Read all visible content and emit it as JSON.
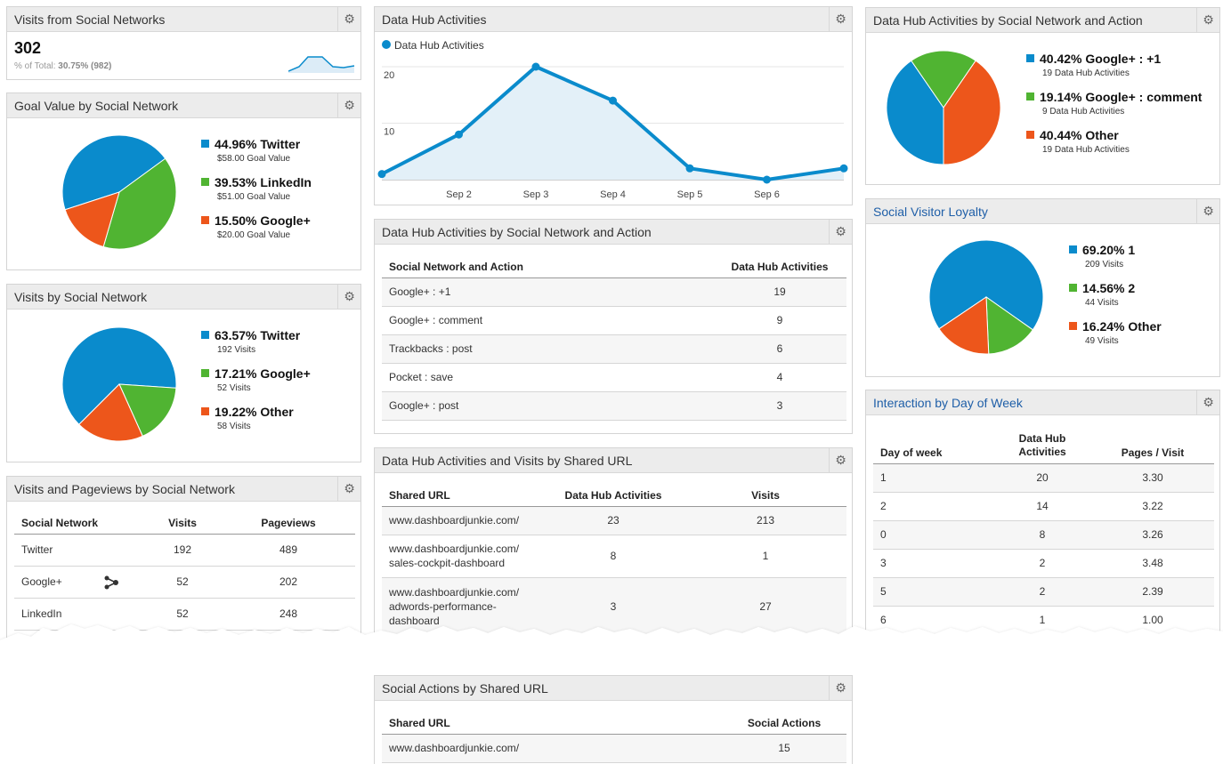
{
  "colors": {
    "blue": "#0a8bcc",
    "green": "#50b432",
    "orange": "#ed561b",
    "header_bg": "#ececec",
    "link": "#1f5fa8"
  },
  "icons": {
    "gear": "gear-icon",
    "share": "share-icon"
  },
  "visits_social": {
    "title": "Visits from Social Networks",
    "value": "302",
    "pct_label": "% of Total:",
    "pct_value": "30.75%",
    "total": "(982)"
  },
  "goal_value": {
    "title": "Goal Value by Social Network",
    "legend": [
      {
        "pct": "44.96%",
        "name": "Twitter",
        "sub": "$58.00 Goal Value",
        "color": "#0a8bcc",
        "value": 44.96
      },
      {
        "pct": "39.53%",
        "name": "LinkedIn",
        "sub": "$51.00 Goal Value",
        "color": "#50b432",
        "value": 39.53
      },
      {
        "pct": "15.50%",
        "name": "Google+",
        "sub": "$20.00 Goal Value",
        "color": "#ed561b",
        "value": 15.5
      }
    ]
  },
  "visits_by_network": {
    "title": "Visits by Social Network",
    "legend": [
      {
        "pct": "63.57%",
        "name": "Twitter",
        "sub": "192 Visits",
        "color": "#0a8bcc",
        "value": 63.57
      },
      {
        "pct": "17.21%",
        "name": "Google+",
        "sub": "52 Visits",
        "color": "#50b432",
        "value": 17.21
      },
      {
        "pct": "19.22%",
        "name": "Other",
        "sub": "58 Visits",
        "color": "#ed561b",
        "value": 19.22
      }
    ]
  },
  "visits_pageviews": {
    "title": "Visits and Pageviews by Social Network",
    "headers": [
      "Social Network",
      "Visits",
      "Pageviews"
    ],
    "rows": [
      [
        "Twitter",
        "192",
        "489"
      ],
      [
        "Google+",
        "52",
        "202"
      ],
      [
        "LinkedIn",
        "52",
        "248"
      ]
    ]
  },
  "hub_chart": {
    "title": "Data Hub Activities",
    "chart_data": {
      "type": "area",
      "series": [
        {
          "name": "Data Hub Activities",
          "values": [
            1,
            8,
            20,
            14,
            2,
            0,
            2
          ]
        }
      ],
      "x": [
        "",
        "Sep 2",
        "Sep 3",
        "Sep 4",
        "Sep 5",
        "Sep 6",
        ""
      ],
      "yticks": [
        "20",
        "10"
      ],
      "ylim": [
        0,
        20
      ],
      "grid": true,
      "legend": "top-left"
    }
  },
  "hub_table": {
    "title": "Data Hub Activities by Social Network and Action",
    "headers": [
      "Social Network and Action",
      "Data Hub Activities"
    ],
    "rows": [
      [
        "Google+ : +1",
        "19"
      ],
      [
        "Google+ : comment",
        "9"
      ],
      [
        "Trackbacks : post",
        "6"
      ],
      [
        "Pocket : save",
        "4"
      ],
      [
        "Google+ : post",
        "3"
      ]
    ]
  },
  "shared_url": {
    "title": "Data Hub Activities and Visits by Shared URL",
    "headers": [
      "Shared URL",
      "Data Hub Activities",
      "Visits"
    ],
    "rows": [
      {
        "url": [
          "www.dashboardjunkie.com/"
        ],
        "act": "23",
        "visits": "213"
      },
      {
        "url": [
          "www.dashboardjunkie.com/",
          "sales-cockpit-dashboard"
        ],
        "act": "8",
        "visits": "1"
      },
      {
        "url": [
          "www.dashboardjunkie.com/",
          "adwords-performance-",
          "dashboard"
        ],
        "act": "3",
        "visits": "27"
      }
    ]
  },
  "social_actions": {
    "title": "Social Actions by Shared URL",
    "headers": [
      "Shared URL",
      "Social Actions"
    ],
    "rows": [
      [
        "www.dashboardjunkie.com/",
        "15"
      ]
    ]
  },
  "hub_pie": {
    "title": "Data Hub Activities by Social Network and Action",
    "legend": [
      {
        "pct": "40.42%",
        "name": "Google+ : +1",
        "sub": "19 Data Hub Activities",
        "color": "#0a8bcc",
        "value": 40.42
      },
      {
        "pct": "19.14%",
        "name": "Google+ : comment",
        "sub": "9 Data Hub Activities",
        "color": "#50b432",
        "value": 19.14
      },
      {
        "pct": "40.44%",
        "name": "Other",
        "sub": "19 Data Hub Activities",
        "color": "#ed561b",
        "value": 40.44
      }
    ]
  },
  "loyalty": {
    "title": "Social Visitor Loyalty",
    "legend": [
      {
        "pct": "69.20%",
        "name": "1",
        "sub": "209 Visits",
        "color": "#0a8bcc",
        "value": 69.2
      },
      {
        "pct": "14.56%",
        "name": "2",
        "sub": "44 Visits",
        "color": "#50b432",
        "value": 14.56
      },
      {
        "pct": "16.24%",
        "name": "Other",
        "sub": "49 Visits",
        "color": "#ed561b",
        "value": 16.24
      }
    ]
  },
  "dow": {
    "title": "Interaction by Day of Week",
    "headers": [
      "Day of week",
      "Data Hub Activities",
      "Pages / Visit"
    ],
    "rows": [
      [
        "1",
        "20",
        "3.30"
      ],
      [
        "2",
        "14",
        "3.22"
      ],
      [
        "0",
        "8",
        "3.26"
      ],
      [
        "3",
        "2",
        "3.48"
      ],
      [
        "5",
        "2",
        "2.39"
      ],
      [
        "6",
        "1",
        "1.00"
      ]
    ]
  }
}
